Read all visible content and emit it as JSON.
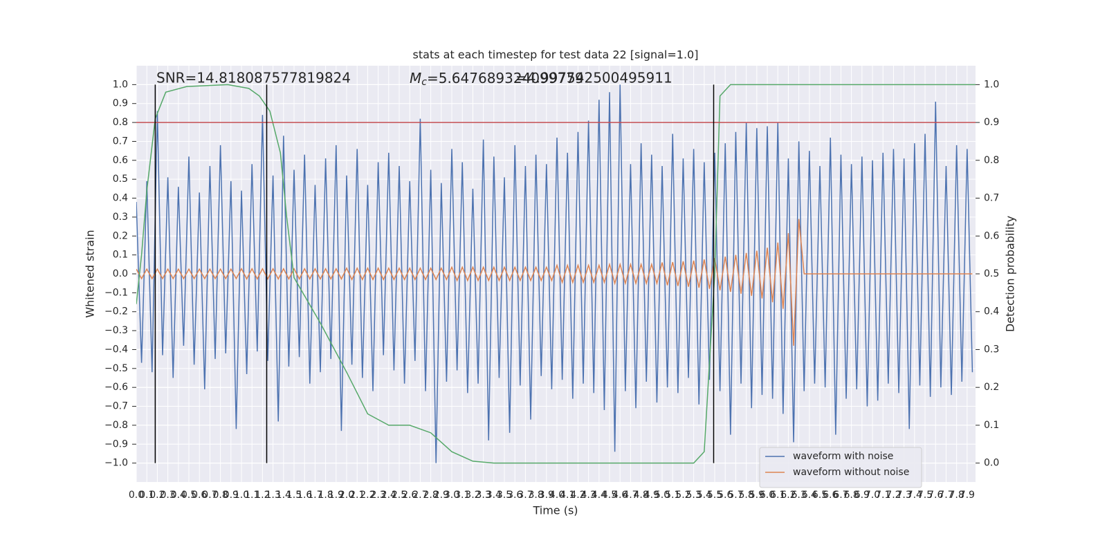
{
  "chart_data": {
    "type": "line",
    "title": "stats at each timestep for test data 22 [signal=1.0]",
    "xlabel": "Time (s)",
    "ylabel": "Whitened strain",
    "y2label": "Detection probability",
    "annotations": {
      "snr": "SNR=14.818087577819824",
      "mc_symbol": "M",
      "mc_subscript": "c",
      "mc_value": "=5.647689324099779",
      "second": "=4.997542500495911"
    },
    "xlim": [
      0,
      7.98
    ],
    "ylim": [
      -1.1,
      1.1
    ],
    "y2lim": [
      -0.05,
      1.05
    ],
    "grid": true,
    "legend": "lower right",
    "xticks": [
      {
        "value": 0,
        "label": "0.0"
      },
      {
        "value": 0.1,
        "label": "0.1"
      },
      {
        "value": 0.2,
        "label": "0.2"
      },
      {
        "value": 0.3,
        "label": "0.3"
      },
      {
        "value": 0.4,
        "label": "0.4"
      },
      {
        "value": 0.5,
        "label": "0.5"
      },
      {
        "value": 0.6,
        "label": "0.6"
      },
      {
        "value": 0.7,
        "label": "0.7"
      },
      {
        "value": 0.8,
        "label": "0.8"
      },
      {
        "value": 0.9,
        "label": "0.9"
      },
      {
        "value": 1,
        "label": "1.0"
      },
      {
        "value": 1.1,
        "label": "1.1"
      },
      {
        "value": 1.2,
        "label": "1.2"
      },
      {
        "value": 1.3,
        "label": "1.3"
      },
      {
        "value": 1.4,
        "label": "1.4"
      },
      {
        "value": 1.5,
        "label": "1.5"
      },
      {
        "value": 1.6,
        "label": "1.6"
      },
      {
        "value": 1.7,
        "label": "1.7"
      },
      {
        "value": 1.8,
        "label": "1.8"
      },
      {
        "value": 1.9,
        "label": "1.9"
      },
      {
        "value": 2,
        "label": "2.0"
      },
      {
        "value": 2.1,
        "label": "2.1"
      },
      {
        "value": 2.2,
        "label": "2.2"
      },
      {
        "value": 2.3,
        "label": "2.3"
      },
      {
        "value": 2.4,
        "label": "2.4"
      },
      {
        "value": 2.5,
        "label": "2.5"
      },
      {
        "value": 2.6,
        "label": "2.6"
      },
      {
        "value": 2.7,
        "label": "2.7"
      },
      {
        "value": 2.8,
        "label": "2.8"
      },
      {
        "value": 2.9,
        "label": "2.9"
      },
      {
        "value": 3,
        "label": "3.0"
      },
      {
        "value": 3.1,
        "label": "3.1"
      },
      {
        "value": 3.2,
        "label": "3.2"
      },
      {
        "value": 3.3,
        "label": "3.3"
      },
      {
        "value": 3.4,
        "label": "3.4"
      },
      {
        "value": 3.5,
        "label": "3.5"
      },
      {
        "value": 3.6,
        "label": "3.6"
      },
      {
        "value": 3.7,
        "label": "3.7"
      },
      {
        "value": 3.8,
        "label": "3.8"
      },
      {
        "value": 3.9,
        "label": "3.9"
      },
      {
        "value": 4,
        "label": "4.0"
      },
      {
        "value": 4.1,
        "label": "4.1"
      },
      {
        "value": 4.2,
        "label": "4.2"
      },
      {
        "value": 4.3,
        "label": "4.3"
      },
      {
        "value": 4.4,
        "label": "4.4"
      },
      {
        "value": 4.5,
        "label": "4.5"
      },
      {
        "value": 4.6,
        "label": "4.6"
      },
      {
        "value": 4.7,
        "label": "4.7"
      },
      {
        "value": 4.8,
        "label": "4.8"
      },
      {
        "value": 4.9,
        "label": "4.9"
      },
      {
        "value": 5,
        "label": "5.0"
      },
      {
        "value": 5.1,
        "label": "5.1"
      },
      {
        "value": 5.2,
        "label": "5.2"
      },
      {
        "value": 5.3,
        "label": "5.3"
      },
      {
        "value": 5.4,
        "label": "5.4"
      },
      {
        "value": 5.5,
        "label": "5.5"
      },
      {
        "value": 5.6,
        "label": "5.6"
      },
      {
        "value": 5.7,
        "label": "5.7"
      },
      {
        "value": 5.8,
        "label": "5.8"
      },
      {
        "value": 5.9,
        "label": "5.9"
      },
      {
        "value": 6,
        "label": "6.0"
      },
      {
        "value": 6.1,
        "label": "6.1"
      },
      {
        "value": 6.2,
        "label": "6.2"
      },
      {
        "value": 6.3,
        "label": "6.3"
      },
      {
        "value": 6.4,
        "label": "6.4"
      },
      {
        "value": 6.5,
        "label": "6.5"
      },
      {
        "value": 6.6,
        "label": "6.6"
      },
      {
        "value": 6.7,
        "label": "6.7"
      },
      {
        "value": 6.8,
        "label": "6.8"
      },
      {
        "value": 6.9,
        "label": "6.9"
      },
      {
        "value": 7,
        "label": "7.0"
      },
      {
        "value": 7.1,
        "label": "7.1"
      },
      {
        "value": 7.2,
        "label": "7.2"
      },
      {
        "value": 7.3,
        "label": "7.3"
      },
      {
        "value": 7.4,
        "label": "7.4"
      },
      {
        "value": 7.5,
        "label": "7.5"
      },
      {
        "value": 7.6,
        "label": "7.6"
      },
      {
        "value": 7.7,
        "label": "7.7"
      },
      {
        "value": 7.8,
        "label": "7.8"
      },
      {
        "value": 7.9,
        "label": "7.9"
      }
    ],
    "yticks": [
      {
        "value": 1,
        "label": "1.0"
      },
      {
        "value": 0.9,
        "label": "0.9"
      },
      {
        "value": 0.8,
        "label": "0.8"
      },
      {
        "value": 0.7,
        "label": "0.7"
      },
      {
        "value": 0.6,
        "label": "0.6"
      },
      {
        "value": 0.5,
        "label": "0.5"
      },
      {
        "value": 0.4,
        "label": "0.4"
      },
      {
        "value": 0.3,
        "label": "0.3"
      },
      {
        "value": 0.2,
        "label": "0.2"
      },
      {
        "value": 0.1,
        "label": "0.1"
      },
      {
        "value": 0,
        "label": "0.0"
      },
      {
        "value": -0.1,
        "label": "−0.1"
      },
      {
        "value": -0.2,
        "label": "−0.2"
      },
      {
        "value": -0.3,
        "label": "−0.3"
      },
      {
        "value": -0.4,
        "label": "−0.4"
      },
      {
        "value": -0.5,
        "label": "−0.5"
      },
      {
        "value": -0.6,
        "label": "−0.6"
      },
      {
        "value": -0.7,
        "label": "−0.7"
      },
      {
        "value": -0.8,
        "label": "−0.8"
      },
      {
        "value": -0.9,
        "label": "−0.9"
      },
      {
        "value": -1,
        "label": "−1.0"
      }
    ],
    "y2ticks": [
      {
        "value": 0,
        "label": "0.0"
      },
      {
        "value": 0.1,
        "label": "0.1"
      },
      {
        "value": 0.2,
        "label": "0.2"
      },
      {
        "value": 0.3,
        "label": "0.3"
      },
      {
        "value": 0.4,
        "label": "0.4"
      },
      {
        "value": 0.5,
        "label": "0.5"
      },
      {
        "value": 0.6,
        "label": "0.6"
      },
      {
        "value": 0.7,
        "label": "0.7"
      },
      {
        "value": 0.8,
        "label": "0.8"
      },
      {
        "value": 0.9,
        "label": "0.9"
      },
      {
        "value": 1,
        "label": "1.0"
      }
    ],
    "threshold": {
      "value": 0.9,
      "axis": "y2",
      "color": "#c44e52"
    },
    "vlines": {
      "x": [
        0.18,
        1.24,
        5.49
      ],
      "ymin": -1,
      "ymax": 1,
      "color": "#000000"
    },
    "series": [
      {
        "name": "waveform with noise",
        "color": "#4c72b0",
        "x": [
          0,
          0.05,
          0.1,
          0.15,
          0.2,
          0.25,
          0.3,
          0.35,
          0.4,
          0.45,
          0.5,
          0.55,
          0.6,
          0.65,
          0.7,
          0.75,
          0.8,
          0.85,
          0.9,
          0.95,
          1,
          1.05,
          1.1,
          1.15,
          1.2,
          1.25,
          1.3,
          1.35,
          1.4,
          1.45,
          1.5,
          1.55,
          1.6,
          1.65,
          1.7,
          1.75,
          1.8,
          1.85,
          1.9,
          1.95,
          2,
          2.05,
          2.1,
          2.15,
          2.2,
          2.25,
          2.3,
          2.35,
          2.4,
          2.45,
          2.5,
          2.55,
          2.6,
          2.65,
          2.7,
          2.75,
          2.8,
          2.85,
          2.9,
          2.95,
          3,
          3.05,
          3.1,
          3.15,
          3.2,
          3.25,
          3.3,
          3.35,
          3.4,
          3.45,
          3.5,
          3.55,
          3.6,
          3.65,
          3.7,
          3.75,
          3.8,
          3.85,
          3.9,
          3.95,
          4,
          4.05,
          4.1,
          4.15,
          4.2,
          4.25,
          4.3,
          4.35,
          4.4,
          4.45,
          4.5,
          4.55,
          4.6,
          4.65,
          4.7,
          4.75,
          4.8,
          4.85,
          4.9,
          4.95,
          5,
          5.05,
          5.1,
          5.15,
          5.2,
          5.25,
          5.3,
          5.35,
          5.4,
          5.45,
          5.5,
          5.55,
          5.6,
          5.65,
          5.7,
          5.75,
          5.8,
          5.85,
          5.9,
          5.95,
          6,
          6.05,
          6.1,
          6.15,
          6.2,
          6.25,
          6.3,
          6.35,
          6.4,
          6.45,
          6.5,
          6.55,
          6.6,
          6.65,
          6.7,
          6.75,
          6.8,
          6.85,
          6.9,
          6.95,
          7,
          7.05,
          7.1,
          7.15,
          7.2,
          7.25,
          7.3,
          7.35,
          7.4,
          7.45,
          7.5,
          7.55,
          7.6,
          7.65,
          7.7,
          7.75,
          7.8,
          7.85,
          7.9,
          7.95
        ],
        "values": [
          0.38,
          -0.47,
          0.49,
          -0.52,
          0.86,
          -0.43,
          0.51,
          -0.55,
          0.46,
          -0.38,
          0.62,
          -0.48,
          0.43,
          -0.61,
          0.57,
          -0.45,
          0.68,
          -0.42,
          0.49,
          -0.82,
          0.44,
          -0.53,
          0.58,
          -0.41,
          0.84,
          -0.46,
          0.52,
          -0.78,
          0.73,
          -0.49,
          0.55,
          -0.44,
          0.63,
          -0.58,
          0.47,
          -0.52,
          0.61,
          -0.45,
          0.68,
          -0.83,
          0.52,
          -0.48,
          0.66,
          -0.55,
          0.47,
          -0.62,
          0.59,
          -0.43,
          0.64,
          -0.51,
          0.57,
          -0.58,
          0.49,
          -0.46,
          0.82,
          -0.62,
          0.55,
          -1.0,
          0.48,
          -0.57,
          0.66,
          -0.51,
          0.59,
          -0.63,
          0.45,
          -0.58,
          0.71,
          -0.88,
          0.62,
          -0.55,
          0.51,
          -0.84,
          0.68,
          -0.59,
          0.57,
          -0.77,
          0.63,
          -0.54,
          0.58,
          -0.61,
          0.72,
          -0.56,
          0.64,
          -0.66,
          0.75,
          -0.58,
          0.81,
          -0.63,
          0.92,
          -0.72,
          0.96,
          -0.94,
          1.0,
          -0.62,
          0.58,
          -0.71,
          0.69,
          -0.57,
          0.63,
          -0.68,
          0.57,
          -0.6,
          0.74,
          -0.63,
          0.61,
          -0.55,
          0.66,
          -0.69,
          0.59,
          -0.56,
          0.64,
          -0.62,
          0.69,
          -0.85,
          0.75,
          -0.58,
          0.8,
          -0.71,
          0.77,
          -0.64,
          0.78,
          -0.66,
          0.8,
          -0.74,
          0.61,
          -0.89,
          0.7,
          -0.62,
          0.65,
          -0.58,
          0.57,
          -0.6,
          0.72,
          -0.85,
          0.63,
          -0.66,
          0.58,
          -0.61,
          0.62,
          -0.7,
          0.6,
          -0.67,
          0.64,
          -0.58,
          0.66,
          -0.63,
          0.61,
          -0.82,
          0.69,
          -0.59,
          0.74,
          -0.65,
          0.91,
          -0.6,
          0.57,
          -0.64,
          0.68,
          -0.57,
          0.66,
          -0.52
        ]
      },
      {
        "name": "waveform without noise",
        "color": "#dd8452",
        "x": [
          0,
          0.05,
          0.1,
          0.15,
          0.2,
          0.25,
          0.3,
          0.35,
          0.4,
          0.45,
          0.5,
          0.55,
          0.6,
          0.65,
          0.7,
          0.75,
          0.8,
          0.85,
          0.9,
          0.95,
          1,
          1.05,
          1.1,
          1.15,
          1.2,
          1.25,
          1.3,
          1.35,
          1.4,
          1.45,
          1.5,
          1.55,
          1.6,
          1.65,
          1.7,
          1.75,
          1.8,
          1.85,
          1.9,
          1.95,
          2,
          2.05,
          2.1,
          2.15,
          2.2,
          2.25,
          2.3,
          2.35,
          2.4,
          2.45,
          2.5,
          2.55,
          2.6,
          2.65,
          2.7,
          2.75,
          2.8,
          2.85,
          2.9,
          2.95,
          3,
          3.05,
          3.1,
          3.15,
          3.2,
          3.25,
          3.3,
          3.35,
          3.4,
          3.45,
          3.5,
          3.55,
          3.6,
          3.65,
          3.7,
          3.75,
          3.8,
          3.85,
          3.9,
          3.95,
          4,
          4.05,
          4.1,
          4.15,
          4.2,
          4.25,
          4.3,
          4.35,
          4.4,
          4.45,
          4.5,
          4.55,
          4.6,
          4.65,
          4.7,
          4.75,
          4.8,
          4.85,
          4.9,
          4.95,
          5,
          5.05,
          5.1,
          5.15,
          5.2,
          5.25,
          5.3,
          5.35,
          5.4,
          5.45,
          5.5,
          5.55,
          5.6,
          5.65,
          5.7,
          5.75,
          5.8,
          5.85,
          5.9,
          5.95,
          6,
          6.05,
          6.1,
          6.15,
          6.2,
          6.25,
          6.3,
          6.35,
          6.4,
          6.45,
          6.5,
          6.55,
          6.6,
          6.65,
          6.7,
          6.75,
          6.8,
          6.85,
          6.9,
          6.95,
          7,
          7.05,
          7.1,
          7.15,
          7.2,
          7.25,
          7.3,
          7.35,
          7.4,
          7.45,
          7.5,
          7.55,
          7.6,
          7.65,
          7.7,
          7.75,
          7.8,
          7.85,
          7.9,
          7.95
        ],
        "values": [
          0.025,
          -0.025,
          0.025,
          -0.025,
          0.025,
          -0.025,
          0.025,
          -0.025,
          0.025,
          -0.025,
          0.025,
          -0.025,
          0.025,
          -0.025,
          0.025,
          -0.025,
          0.025,
          -0.025,
          0.025,
          -0.025,
          0.027,
          -0.027,
          0.027,
          -0.027,
          0.027,
          -0.027,
          0.027,
          -0.027,
          0.027,
          -0.027,
          0.027,
          -0.027,
          0.027,
          -0.027,
          0.027,
          -0.027,
          0.027,
          -0.027,
          0.027,
          -0.027,
          0.03,
          -0.03,
          0.03,
          -0.03,
          0.03,
          -0.03,
          0.03,
          -0.03,
          0.03,
          -0.03,
          0.03,
          -0.03,
          0.03,
          -0.03,
          0.03,
          -0.03,
          0.03,
          -0.03,
          0.03,
          -0.03,
          0.035,
          -0.035,
          0.035,
          -0.035,
          0.035,
          -0.035,
          0.035,
          -0.035,
          0.035,
          -0.035,
          0.035,
          -0.035,
          0.035,
          -0.035,
          0.035,
          -0.035,
          0.035,
          -0.035,
          0.035,
          -0.035,
          0.045,
          -0.045,
          0.045,
          -0.045,
          0.045,
          -0.045,
          0.045,
          -0.045,
          0.045,
          -0.045,
          0.05,
          -0.05,
          0.05,
          -0.05,
          0.05,
          -0.05,
          0.05,
          -0.05,
          0.05,
          -0.05,
          0.06,
          -0.06,
          0.062,
          -0.064,
          0.066,
          -0.068,
          0.07,
          -0.073,
          0.076,
          -0.079,
          0.083,
          -0.087,
          0.091,
          -0.095,
          0.1,
          -0.105,
          0.11,
          -0.116,
          0.122,
          -0.13,
          0.138,
          -0.15,
          0.165,
          -0.185,
          0.215,
          -0.38,
          0.29,
          0,
          0,
          0,
          0,
          0,
          0,
          0,
          0,
          0,
          0,
          0,
          0,
          0,
          0,
          0,
          0,
          0,
          0,
          0,
          0,
          0,
          0,
          0,
          0,
          0,
          0,
          0,
          0,
          0,
          0,
          0,
          0,
          0
        ]
      },
      {
        "color": "#55a868",
        "axis": "y2",
        "x": [
          0,
          0.05,
          0.1,
          0.18,
          0.28,
          0.48,
          0.87,
          1.07,
          1.17,
          1.27,
          1.37,
          1.43,
          1.5,
          1.75,
          2.0,
          2.2,
          2.4,
          2.6,
          2.8,
          3.0,
          3.2,
          3.4,
          4.0,
          5.0,
          5.3,
          5.4,
          5.5,
          5.55,
          5.65,
          6.0,
          7.0,
          7.98
        ],
        "values": [
          0.42,
          0.55,
          0.72,
          0.91,
          0.98,
          0.995,
          1.0,
          0.99,
          0.97,
          0.93,
          0.82,
          0.65,
          0.49,
          0.37,
          0.24,
          0.13,
          0.1,
          0.1,
          0.08,
          0.03,
          0.005,
          0,
          0,
          0,
          0,
          0.03,
          0.5,
          0.97,
          1.0,
          1.0,
          1.0,
          1.0
        ]
      }
    ]
  }
}
